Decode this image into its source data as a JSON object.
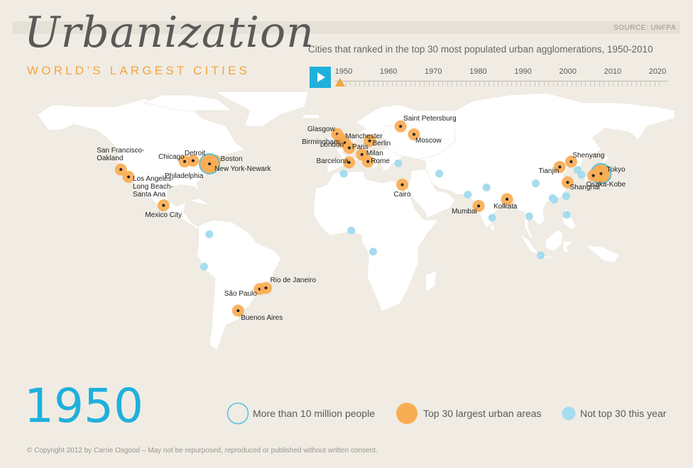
{
  "header": {
    "source": "SOURCE: UNFPA",
    "title": "Urbanization",
    "subtitle": "WORLD’S LARGEST CITIES",
    "description": "Cities that ranked in the top 30 most populated urban agglomerations, 1950-2010"
  },
  "timeline": {
    "years": [
      "1950",
      "1960",
      "1970",
      "1980",
      "1990",
      "2000",
      "2010",
      "2020"
    ],
    "current": "1950"
  },
  "current_year": "1950",
  "colors": {
    "background": "#f0ece4",
    "land": "#ffffff",
    "top30": "#f8ad54",
    "not_top30": "#a5dcee",
    "over10m": "#5cc3df",
    "accent": "#1fb0dc",
    "subtitle": "#f4a53a"
  },
  "cities": [
    {
      "name": "San Francisco-\nOakland",
      "lon": -122.4,
      "lat": 37.8,
      "top30": true
    },
    {
      "name": "Los Angeles-\nLong Beach-\nSanta Ana",
      "lon": -118.2,
      "lat": 34.0,
      "top30": true
    },
    {
      "name": "Mexico City",
      "lon": -99.1,
      "lat": 19.4,
      "top30": true
    },
    {
      "name": "Chicago",
      "lon": -87.6,
      "lat": 41.9,
      "top30": true
    },
    {
      "name": "Detroit",
      "lon": -83.0,
      "lat": 42.3,
      "top30": true
    },
    {
      "name": "Boston",
      "lon": -71.1,
      "lat": 42.4,
      "top30": true
    },
    {
      "name": "Philadelphia",
      "lon": -75.2,
      "lat": 40.0,
      "top30": true
    },
    {
      "name": "New York-Newark",
      "lon": -74.0,
      "lat": 40.7,
      "top30": true,
      "over10m": true
    },
    {
      "name": "São Paulo",
      "lon": -46.6,
      "lat": -23.5,
      "top30": true
    },
    {
      "name": "Rio de Janeiro",
      "lon": -43.2,
      "lat": -22.9,
      "top30": true
    },
    {
      "name": "Buenos Aires",
      "lon": -58.4,
      "lat": -34.6,
      "top30": true
    },
    {
      "name": "Glasgow",
      "lon": -4.3,
      "lat": 55.9,
      "top30": true
    },
    {
      "name": "Manchester",
      "lon": -2.2,
      "lat": 53.5,
      "top30": true
    },
    {
      "name": "Birmingham",
      "lon": -1.9,
      "lat": 52.5,
      "top30": true
    },
    {
      "name": "London",
      "lon": -0.1,
      "lat": 51.5,
      "top30": true
    },
    {
      "name": "Paris",
      "lon": 2.3,
      "lat": 48.9,
      "top30": true
    },
    {
      "name": "Berlin",
      "lon": 13.4,
      "lat": 52.5,
      "top30": true
    },
    {
      "name": "Milan",
      "lon": 9.2,
      "lat": 45.5,
      "top30": true
    },
    {
      "name": "Barcelona",
      "lon": 2.2,
      "lat": 41.4,
      "top30": true
    },
    {
      "name": "Rome",
      "lon": 12.5,
      "lat": 41.9,
      "top30": true
    },
    {
      "name": "Saint Petersburg",
      "lon": 30.3,
      "lat": 59.9,
      "top30": true
    },
    {
      "name": "Moscow",
      "lon": 37.6,
      "lat": 55.8,
      "top30": true
    },
    {
      "name": "Cairo",
      "lon": 31.2,
      "lat": 30.0,
      "top30": true
    },
    {
      "name": "Mumbai",
      "lon": 72.9,
      "lat": 19.1,
      "top30": true
    },
    {
      "name": "Kolkata",
      "lon": 88.4,
      "lat": 22.6,
      "top30": true
    },
    {
      "name": "Shenyang",
      "lon": 123.4,
      "lat": 41.8,
      "top30": true
    },
    {
      "name": "Tianjin",
      "lon": 117.2,
      "lat": 39.1,
      "top30": true
    },
    {
      "name": "Shanghai",
      "lon": 121.5,
      "lat": 31.2,
      "top30": true
    },
    {
      "name": "Tokyo",
      "lon": 139.7,
      "lat": 35.7,
      "top30": true,
      "over10m": true
    },
    {
      "name": "Osaka-Kobe",
      "lon": 135.5,
      "lat": 34.7,
      "top30": true
    }
  ],
  "other_cities": [
    {
      "lon": -77.0,
      "lat": -12.0
    },
    {
      "lon": -74.1,
      "lat": 4.6
    },
    {
      "lon": -0.7,
      "lat": 35.7
    },
    {
      "lon": 3.4,
      "lat": 6.5
    },
    {
      "lon": 15.3,
      "lat": -4.3
    },
    {
      "lon": 29.0,
      "lat": 41.0
    },
    {
      "lon": 51.4,
      "lat": 35.7
    },
    {
      "lon": 67.0,
      "lat": 24.9
    },
    {
      "lon": 77.2,
      "lat": 28.6
    },
    {
      "lon": 80.3,
      "lat": 13.1
    },
    {
      "lon": 106.8,
      "lat": -6.2
    },
    {
      "lon": 116.4,
      "lat": 39.9
    },
    {
      "lon": 113.3,
      "lat": 23.1
    },
    {
      "lon": 114.2,
      "lat": 22.3
    },
    {
      "lon": 104.1,
      "lat": 30.7
    },
    {
      "lon": 126.9,
      "lat": 37.6
    },
    {
      "lon": 121.0,
      "lat": 14.6
    },
    {
      "lon": 100.5,
      "lat": 13.8
    },
    {
      "lon": 120.7,
      "lat": 24.1
    },
    {
      "lon": 129.0,
      "lat": 35.1
    }
  ],
  "legend": {
    "over10m": "More than 10 million people",
    "top30": "Top 30 largest urban areas",
    "not_top30": "Not top 30 this year"
  },
  "copyright": "© Copyright 2012 by Carrie Osgood – May not be repurposed, reproduced or published without written consent."
}
